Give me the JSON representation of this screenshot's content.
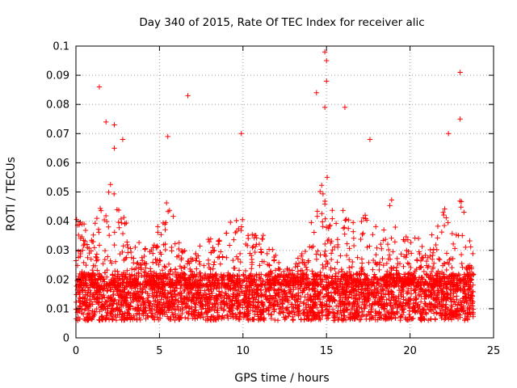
{
  "chart_data": {
    "type": "scatter",
    "title": "Day 340 of 2015, Rate Of TEC Index for receiver alic",
    "xlabel": "GPS time / hours",
    "ylabel": "ROTI / TECUs",
    "xlim": [
      0,
      25
    ],
    "ylim": [
      0,
      0.1
    ],
    "xticks": [
      "0",
      "5",
      "10",
      "15",
      "20",
      "25"
    ],
    "yticks": [
      "0",
      "0.01",
      "0.02",
      "0.03",
      "0.04",
      "0.05",
      "0.06",
      "0.07",
      "0.08",
      "0.09",
      "0.1"
    ],
    "grid": true,
    "marker": "+",
    "color": "#ff0000",
    "data_range_x": [
      0,
      23.8
    ],
    "baseline_band_y": [
      0.006,
      0.022
    ],
    "series": [
      {
        "name": "ROTI",
        "notable_points": [
          {
            "x": 1.4,
            "y": 0.086
          },
          {
            "x": 1.8,
            "y": 0.074
          },
          {
            "x": 2.3,
            "y": 0.073
          },
          {
            "x": 2.3,
            "y": 0.065
          },
          {
            "x": 2.8,
            "y": 0.068
          },
          {
            "x": 6.7,
            "y": 0.083
          },
          {
            "x": 5.5,
            "y": 0.069
          },
          {
            "x": 9.9,
            "y": 0.07
          },
          {
            "x": 14.4,
            "y": 0.084
          },
          {
            "x": 14.9,
            "y": 0.098
          },
          {
            "x": 15.0,
            "y": 0.095
          },
          {
            "x": 15.0,
            "y": 0.088
          },
          {
            "x": 14.9,
            "y": 0.079
          },
          {
            "x": 16.1,
            "y": 0.079
          },
          {
            "x": 17.6,
            "y": 0.068
          },
          {
            "x": 22.3,
            "y": 0.07
          },
          {
            "x": 23.0,
            "y": 0.091
          },
          {
            "x": 23.0,
            "y": 0.075
          }
        ],
        "activity_envelope": [
          {
            "x": 0.0,
            "y": 0.045
          },
          {
            "x": 0.5,
            "y": 0.04
          },
          {
            "x": 1.0,
            "y": 0.035
          },
          {
            "x": 1.5,
            "y": 0.05
          },
          {
            "x": 2.0,
            "y": 0.055
          },
          {
            "x": 2.5,
            "y": 0.045
          },
          {
            "x": 3.0,
            "y": 0.04
          },
          {
            "x": 3.5,
            "y": 0.033
          },
          {
            "x": 4.0,
            "y": 0.033
          },
          {
            "x": 4.5,
            "y": 0.038
          },
          {
            "x": 5.0,
            "y": 0.04
          },
          {
            "x": 5.5,
            "y": 0.05
          },
          {
            "x": 6.0,
            "y": 0.038
          },
          {
            "x": 6.5,
            "y": 0.03
          },
          {
            "x": 7.0,
            "y": 0.03
          },
          {
            "x": 7.5,
            "y": 0.035
          },
          {
            "x": 8.0,
            "y": 0.035
          },
          {
            "x": 8.5,
            "y": 0.035
          },
          {
            "x": 9.0,
            "y": 0.04
          },
          {
            "x": 9.5,
            "y": 0.04
          },
          {
            "x": 10.0,
            "y": 0.045
          },
          {
            "x": 10.5,
            "y": 0.035
          },
          {
            "x": 11.0,
            "y": 0.04
          },
          {
            "x": 11.5,
            "y": 0.035
          },
          {
            "x": 12.0,
            "y": 0.03
          },
          {
            "x": 12.5,
            "y": 0.025
          },
          {
            "x": 13.0,
            "y": 0.024
          },
          {
            "x": 13.5,
            "y": 0.03
          },
          {
            "x": 14.0,
            "y": 0.04
          },
          {
            "x": 14.5,
            "y": 0.05
          },
          {
            "x": 15.0,
            "y": 0.06
          },
          {
            "x": 15.5,
            "y": 0.04
          },
          {
            "x": 16.0,
            "y": 0.045
          },
          {
            "x": 16.5,
            "y": 0.04
          },
          {
            "x": 17.0,
            "y": 0.04
          },
          {
            "x": 17.5,
            "y": 0.045
          },
          {
            "x": 18.0,
            "y": 0.04
          },
          {
            "x": 18.5,
            "y": 0.04
          },
          {
            "x": 19.0,
            "y": 0.05
          },
          {
            "x": 19.5,
            "y": 0.035
          },
          {
            "x": 20.0,
            "y": 0.035
          },
          {
            "x": 20.5,
            "y": 0.035
          },
          {
            "x": 21.0,
            "y": 0.03
          },
          {
            "x": 21.5,
            "y": 0.04
          },
          {
            "x": 22.0,
            "y": 0.045
          },
          {
            "x": 22.5,
            "y": 0.04
          },
          {
            "x": 23.0,
            "y": 0.05
          },
          {
            "x": 23.5,
            "y": 0.035
          },
          {
            "x": 23.8,
            "y": 0.03
          }
        ]
      }
    ]
  }
}
